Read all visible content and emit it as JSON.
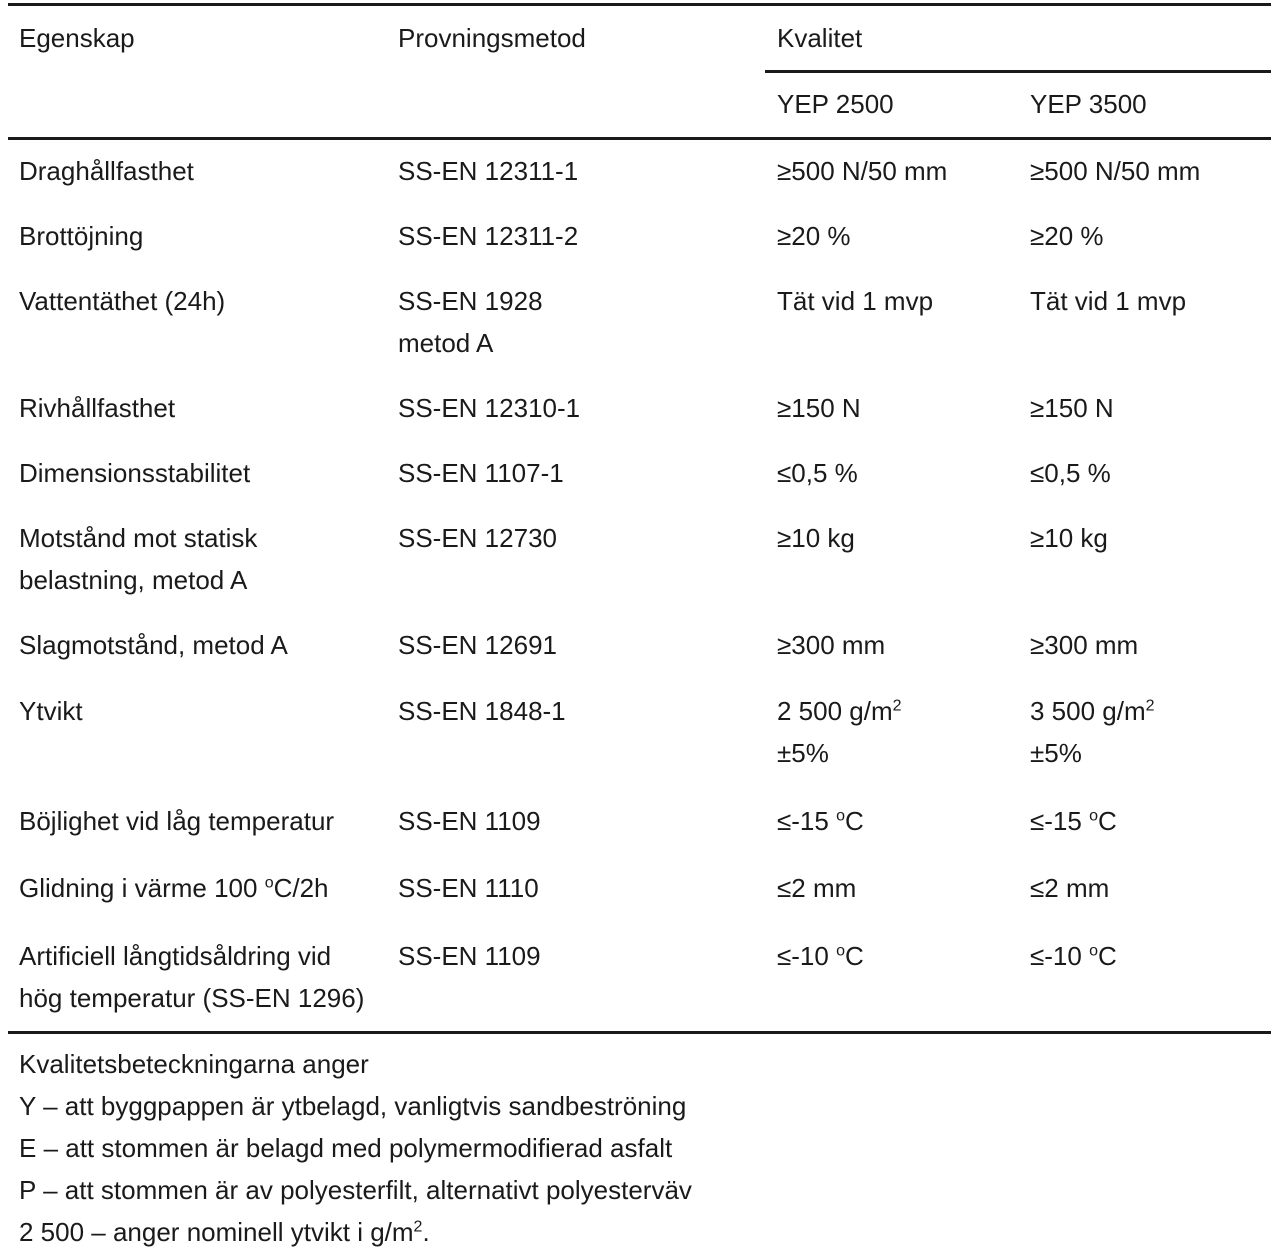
{
  "table": {
    "headers": {
      "property": "Egenskap",
      "method": "Provningsmetod",
      "quality": "Kvalitet",
      "yep2500": "YEP 2500",
      "yep3500": "YEP 3500"
    },
    "rows": [
      {
        "property": [
          "Draghållfasthet"
        ],
        "method": [
          "SS-EN 12311-1"
        ],
        "yep2500": [
          "≥500 N/50 mm"
        ],
        "yep3500": [
          "≥500 N/50 mm"
        ]
      },
      {
        "property": [
          "Brottöjning"
        ],
        "method": [
          "SS-EN 12311-2"
        ],
        "yep2500": [
          "≥20 %"
        ],
        "yep3500": [
          "≥20 %"
        ]
      },
      {
        "property": [
          "Vattentäthet (24h)"
        ],
        "method": [
          "SS-EN 1928",
          "metod A"
        ],
        "yep2500": [
          "Tät vid 1 mvp"
        ],
        "yep3500": [
          "Tät vid 1 mvp"
        ]
      },
      {
        "property": [
          "Rivhållfasthet"
        ],
        "method": [
          "SS-EN 12310-1"
        ],
        "yep2500": [
          "≥150 N"
        ],
        "yep3500": [
          "≥150 N"
        ]
      },
      {
        "property": [
          "Dimensionsstabilitet"
        ],
        "method": [
          "SS-EN 1107-1"
        ],
        "yep2500": [
          "≤0,5 %"
        ],
        "yep3500": [
          "≤0,5 %"
        ]
      },
      {
        "property": [
          "Motstånd mot statisk",
          "belastning, metod A"
        ],
        "method": [
          "SS-EN 12730"
        ],
        "yep2500": [
          "≥10 kg"
        ],
        "yep3500": [
          "≥10 kg"
        ]
      },
      {
        "property": [
          "Slagmotstånd, metod A"
        ],
        "method": [
          "SS-EN 12691"
        ],
        "yep2500": [
          "≥300 mm"
        ],
        "yep3500": [
          "≥300 mm"
        ]
      },
      {
        "property": [
          "Ytvikt"
        ],
        "method": [
          "SS-EN 1848-1"
        ],
        "yep2500": [
          "2 500 g/m",
          "±5%"
        ],
        "yep3500": [
          "3 500 g/m",
          "±5%"
        ]
      },
      {
        "property": [
          "Böjlighet vid låg temperatur"
        ],
        "method": [
          "SS-EN 1109"
        ],
        "yep2500": [
          "≤-15 ",
          "C"
        ],
        "yep3500": [
          "≤-15 ",
          "C"
        ]
      },
      {
        "property": [
          "Glidning i värme 100 ",
          "C/2h"
        ],
        "method": [
          "SS-EN 1110"
        ],
        "yep2500": [
          "≤2 mm"
        ],
        "yep3500": [
          "≤2 mm"
        ]
      },
      {
        "property": [
          "Artificiell långtidsåldring vid",
          "hög temperatur (SS-EN 1296)"
        ],
        "method": [
          "SS-EN 1109"
        ],
        "yep2500": [
          "≤-10 ",
          "C"
        ],
        "yep3500": [
          "≤-10 ",
          "C"
        ]
      }
    ],
    "superscripts": {
      "square": "2",
      "degree": "o"
    }
  },
  "notes": {
    "intro": "Kvalitetsbeteckningarna anger",
    "lines": [
      "Y – att byggpappen är ytbelagd, vanligtvis sandbeströning",
      "E – att stommen är belagd med polymermodifierad asfalt",
      "P – att stommen är av polyesterfilt, alternativt polyesterväv"
    ],
    "last_prefix": "2 500 – anger nominell ytvikt i g/m",
    "last_suffix": "."
  }
}
